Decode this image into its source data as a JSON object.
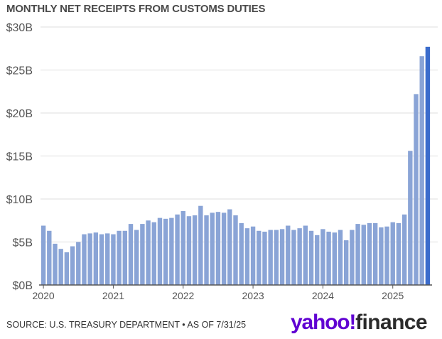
{
  "colors": {
    "bar": "#8aa4d6",
    "bar_highlight": "#3b6ccc",
    "grid": "#dddddd",
    "axis": "#555555",
    "logo_purple": "#6001d2"
  },
  "chart_data": {
    "type": "bar",
    "title": "MONTHLY NET RECEIPTS FROM CUSTOMS DUTIES",
    "xlabel": "",
    "ylabel": "",
    "unit": "billions USD",
    "ylim": [
      0,
      30
    ],
    "yticks": [
      0,
      5,
      10,
      15,
      20,
      25,
      30
    ],
    "ytick_labels": [
      "$0B",
      "$5B",
      "$10B",
      "$15B",
      "$20B",
      "$25B",
      "$30B"
    ],
    "xtick_labels": [
      "2020",
      "2021",
      "2022",
      "2023",
      "2024",
      "2025"
    ],
    "xtick_indices": [
      0,
      12,
      24,
      36,
      48,
      60
    ],
    "grid": true,
    "highlight_index": 66,
    "categories": [
      "2020-01",
      "2020-02",
      "2020-03",
      "2020-04",
      "2020-05",
      "2020-06",
      "2020-07",
      "2020-08",
      "2020-09",
      "2020-10",
      "2020-11",
      "2020-12",
      "2021-01",
      "2021-02",
      "2021-03",
      "2021-04",
      "2021-05",
      "2021-06",
      "2021-07",
      "2021-08",
      "2021-09",
      "2021-10",
      "2021-11",
      "2021-12",
      "2022-01",
      "2022-02",
      "2022-03",
      "2022-04",
      "2022-05",
      "2022-06",
      "2022-07",
      "2022-08",
      "2022-09",
      "2022-10",
      "2022-11",
      "2022-12",
      "2023-01",
      "2023-02",
      "2023-03",
      "2023-04",
      "2023-05",
      "2023-06",
      "2023-07",
      "2023-08",
      "2023-09",
      "2023-10",
      "2023-11",
      "2023-12",
      "2024-01",
      "2024-02",
      "2024-03",
      "2024-04",
      "2024-05",
      "2024-06",
      "2024-07",
      "2024-08",
      "2024-09",
      "2024-10",
      "2024-11",
      "2024-12",
      "2025-01",
      "2025-02",
      "2025-03",
      "2025-04",
      "2025-05",
      "2025-06",
      "2025-07"
    ],
    "values": [
      6.9,
      6.3,
      4.8,
      4.2,
      3.8,
      4.5,
      5.0,
      5.9,
      6.0,
      6.1,
      5.9,
      6.0,
      5.9,
      6.3,
      6.3,
      7.1,
      6.4,
      7.1,
      7.5,
      7.3,
      7.8,
      7.7,
      7.8,
      8.2,
      8.6,
      8.0,
      8.1,
      9.2,
      8.1,
      8.4,
      8.5,
      8.4,
      8.8,
      8.1,
      7.2,
      6.6,
      6.8,
      6.3,
      6.2,
      6.4,
      6.4,
      6.5,
      6.9,
      6.4,
      6.6,
      6.9,
      6.3,
      5.8,
      6.5,
      6.2,
      6.1,
      6.4,
      5.2,
      6.4,
      7.1,
      7.0,
      7.2,
      7.2,
      6.7,
      6.8,
      7.3,
      7.2,
      8.2,
      15.6,
      22.2,
      26.6,
      27.7
    ]
  },
  "footer": {
    "source": "SOURCE: U.S. TREASURY DEPARTMENT • AS OF 7/31/25",
    "logo_word1": "yahoo!",
    "logo_word2": "finance"
  }
}
